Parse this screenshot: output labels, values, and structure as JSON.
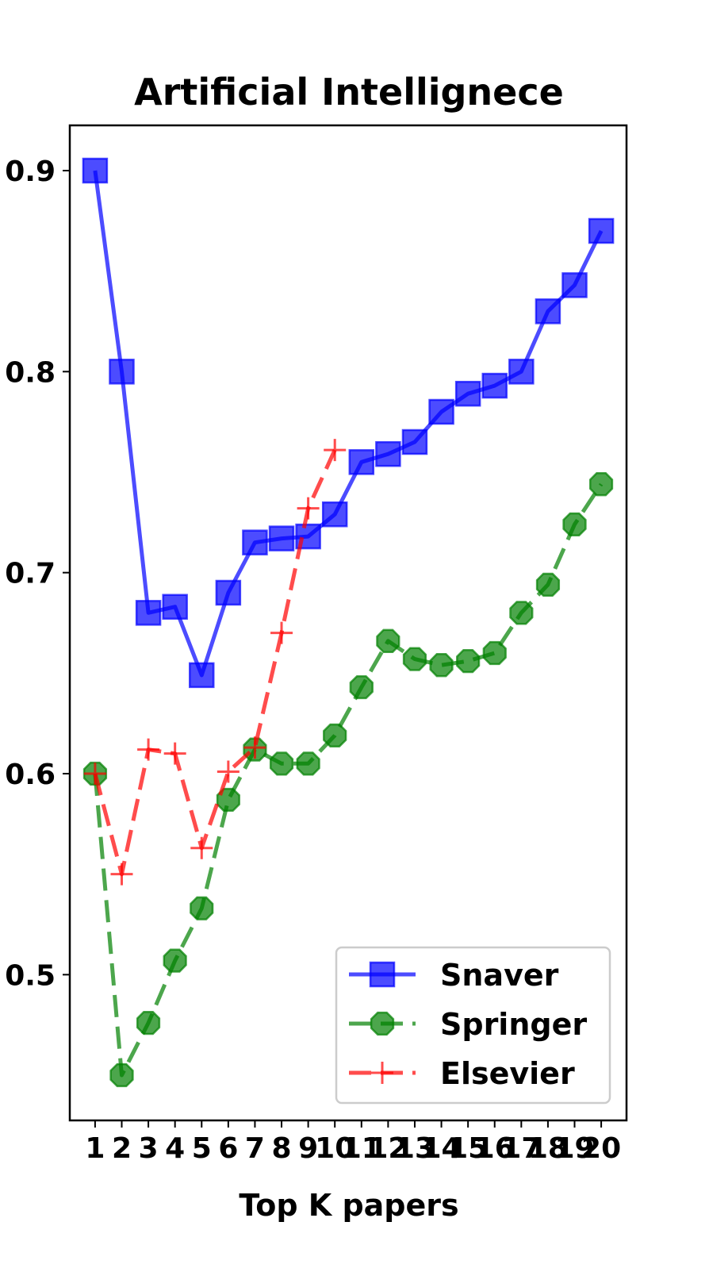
{
  "chart_data": {
    "type": "line",
    "title": "Artificial Intellignece",
    "xlabel": "Top K papers",
    "ylabel": "",
    "x": [
      1,
      2,
      3,
      4,
      5,
      6,
      7,
      8,
      9,
      10,
      11,
      12,
      13,
      14,
      15,
      16,
      17,
      18,
      19,
      20
    ],
    "xlim": [
      0.05,
      20.95
    ],
    "ylim": [
      0.4275,
      0.9225
    ],
    "yticks": [
      0.5,
      0.6,
      0.7,
      0.8,
      0.9
    ],
    "ytick_labels": [
      "0.5",
      "0.6",
      "0.7",
      "0.8",
      "0.9"
    ],
    "grid": false,
    "legend_position": "bottom-right",
    "series": [
      {
        "name": "Snaver",
        "color": "#0000ff",
        "line_style": "solid",
        "marker": "square",
        "x": [
          1,
          2,
          3,
          4,
          5,
          6,
          7,
          8,
          9,
          10,
          11,
          12,
          13,
          14,
          15,
          16,
          17,
          18,
          19,
          20
        ],
        "values": [
          0.9,
          0.8,
          0.68,
          0.683,
          0.649,
          0.69,
          0.715,
          0.717,
          0.718,
          0.729,
          0.755,
          0.759,
          0.765,
          0.78,
          0.789,
          0.793,
          0.8,
          0.83,
          0.843,
          0.87
        ]
      },
      {
        "name": "Springer",
        "color": "#008000",
        "line_style": "dashed",
        "marker": "octagon",
        "x": [
          1,
          2,
          3,
          4,
          5,
          6,
          7,
          8,
          9,
          10,
          11,
          12,
          13,
          14,
          15,
          16,
          17,
          18,
          19,
          20
        ],
        "values": [
          0.6,
          0.45,
          0.476,
          0.507,
          0.533,
          0.587,
          0.612,
          0.605,
          0.605,
          0.619,
          0.643,
          0.666,
          0.657,
          0.654,
          0.656,
          0.66,
          0.68,
          0.694,
          0.724,
          0.744
        ]
      },
      {
        "name": "Elsevier",
        "color": "#ff0000",
        "line_style": "dashed",
        "marker": "plus",
        "x": [
          1,
          2,
          3,
          4,
          5,
          6,
          7,
          8,
          9,
          10
        ],
        "values": [
          0.6,
          0.55,
          0.612,
          0.61,
          0.563,
          0.601,
          0.613,
          0.67,
          0.732,
          0.761
        ]
      }
    ]
  }
}
